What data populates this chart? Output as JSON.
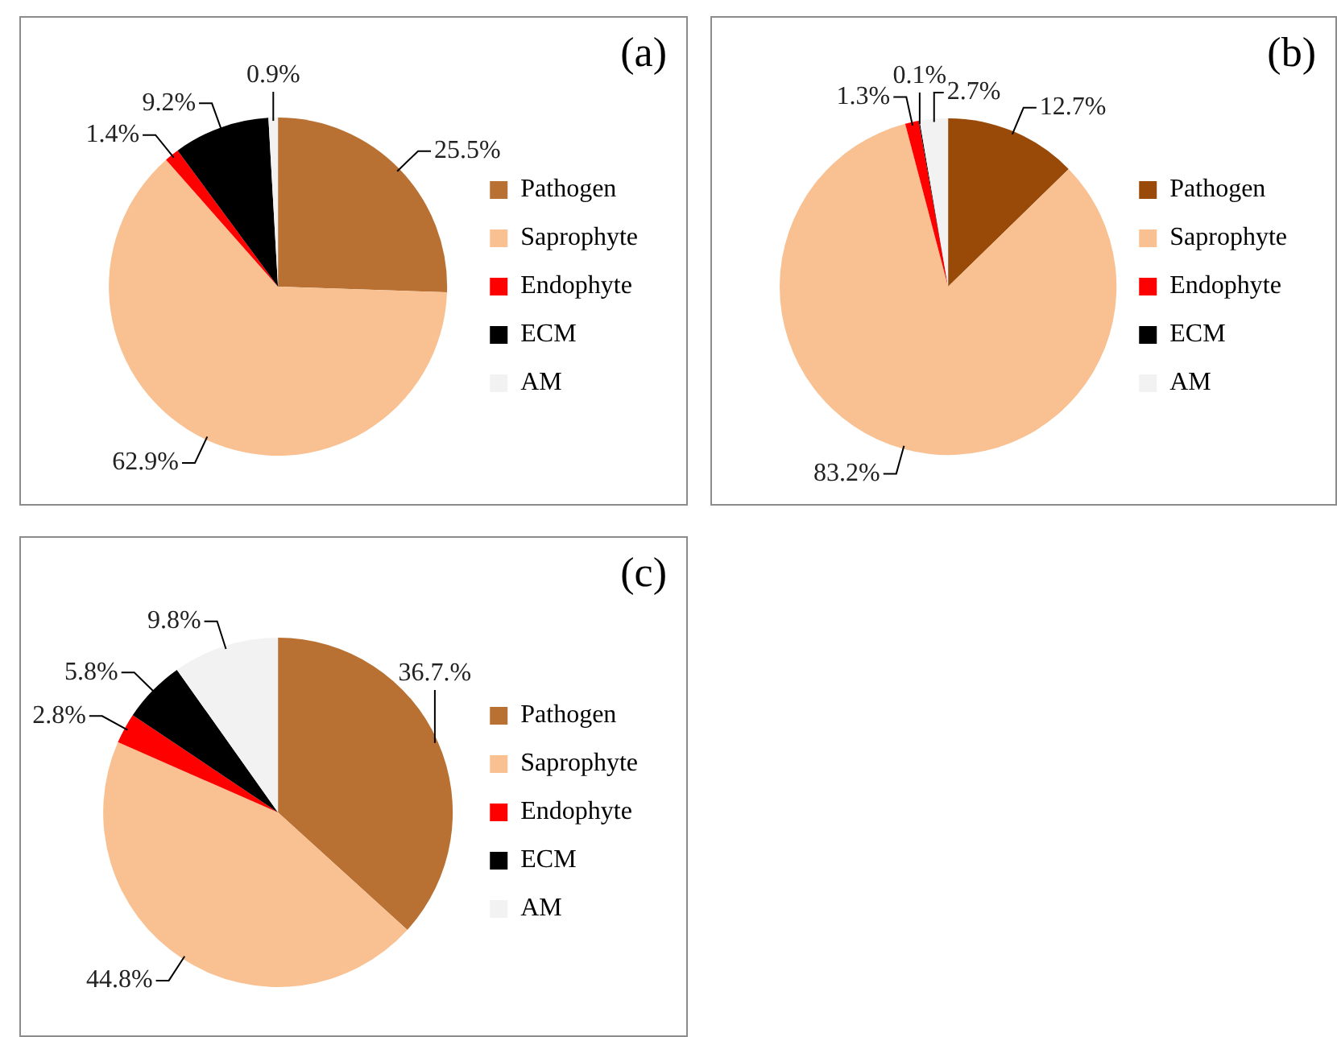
{
  "chart_data": [
    {
      "type": "pie",
      "title": "(a)",
      "categories": [
        "Pathogen",
        "Saprophyte",
        "Endophyte",
        "ECM",
        "AM"
      ],
      "values": [
        25.5,
        62.9,
        1.4,
        9.2,
        0.9
      ],
      "colors": [
        "#b87033",
        "#f9c192",
        "#ff0000",
        "#000000",
        "#f2f2f2"
      ],
      "value_labels": [
        "25.5%",
        "62.9%",
        "1.4%",
        "9.2%",
        "0.9%"
      ],
      "legend": "right"
    },
    {
      "type": "pie",
      "title": "(b)",
      "categories": [
        "Pathogen",
        "Saprophyte",
        "Endophyte",
        "ECM",
        "AM"
      ],
      "values": [
        12.7,
        83.2,
        1.3,
        0.1,
        2.7
      ],
      "colors": [
        "#994a08",
        "#f9c192",
        "#ff0000",
        "#000000",
        "#f2f2f2"
      ],
      "value_labels": [
        "12.7%",
        "83.2%",
        "1.3%",
        "0.1%",
        "2.7%"
      ],
      "legend": "right"
    },
    {
      "type": "pie",
      "title": "(c)",
      "categories": [
        "Pathogen",
        "Saprophyte",
        "Endophyte",
        "ECM",
        "AM"
      ],
      "values": [
        36.7,
        44.8,
        2.8,
        5.8,
        9.8
      ],
      "colors": [
        "#b87033",
        "#f9c192",
        "#ff0000",
        "#000000",
        "#f2f2f2"
      ],
      "value_labels": [
        "36.7.%",
        "44.8%",
        "2.8%",
        "5.8%",
        "9.8%"
      ],
      "legend": "right"
    }
  ]
}
